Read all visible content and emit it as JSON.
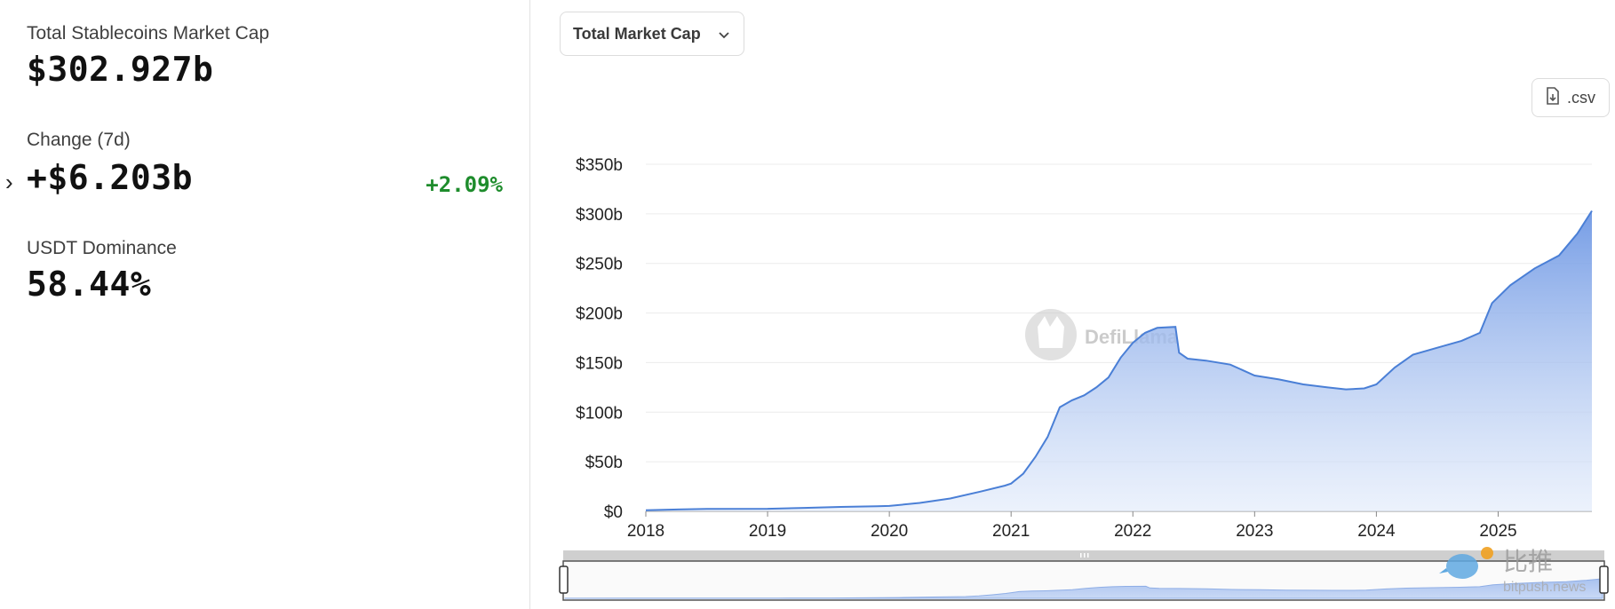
{
  "stats": {
    "market_cap_label": "Total Stablecoins Market Cap",
    "market_cap_value": "$302.927b",
    "change_label": "Change (7d)",
    "change_value": "+$6.203b",
    "change_pct": "+2.09%",
    "dominance_label": "USDT Dominance",
    "dominance_value": "58.44%"
  },
  "toolbar": {
    "metric_select": "Total Market Cap",
    "csv_label": ".csv"
  },
  "watermarks": {
    "defillama": "DefiLlama",
    "bitpush_cn": "比推",
    "bitpush_en": "bitpush.news"
  },
  "colors": {
    "line": "#4a7fd6",
    "fill_top": "#7aa2e8",
    "positive": "#1e8c2c"
  },
  "chart_data": {
    "type": "area",
    "title": "",
    "xlabel": "",
    "ylabel": "",
    "x_ticks": [
      "2018",
      "2019",
      "2020",
      "2021",
      "2022",
      "2023",
      "2024",
      "2025"
    ],
    "y_ticks": [
      "$0",
      "$50b",
      "$100b",
      "$150b",
      "$200b",
      "$250b",
      "$300b",
      "$350b"
    ],
    "xlim": [
      2018.0,
      2025.77
    ],
    "ylim": [
      0,
      350
    ],
    "grid": true,
    "series": [
      {
        "points": [
          [
            2018.0,
            1.2
          ],
          [
            2018.5,
            2.5
          ],
          [
            2019.0,
            2.6
          ],
          [
            2019.3,
            3.5
          ],
          [
            2019.6,
            4.5
          ],
          [
            2019.9,
            5.2
          ],
          [
            2020.0,
            5.5
          ],
          [
            2020.25,
            8.5
          ],
          [
            2020.5,
            13
          ],
          [
            2020.75,
            20
          ],
          [
            2020.95,
            26
          ],
          [
            2021.0,
            28
          ],
          [
            2021.1,
            38
          ],
          [
            2021.2,
            55
          ],
          [
            2021.3,
            75
          ],
          [
            2021.4,
            105
          ],
          [
            2021.5,
            112
          ],
          [
            2021.6,
            117
          ],
          [
            2021.7,
            125
          ],
          [
            2021.8,
            135
          ],
          [
            2021.9,
            155
          ],
          [
            2022.0,
            170
          ],
          [
            2022.1,
            180
          ],
          [
            2022.2,
            185
          ],
          [
            2022.35,
            186
          ],
          [
            2022.38,
            160
          ],
          [
            2022.45,
            154
          ],
          [
            2022.6,
            152
          ],
          [
            2022.8,
            148
          ],
          [
            2023.0,
            137
          ],
          [
            2023.2,
            133
          ],
          [
            2023.4,
            128
          ],
          [
            2023.6,
            125
          ],
          [
            2023.75,
            123
          ],
          [
            2023.9,
            124
          ],
          [
            2024.0,
            128
          ],
          [
            2024.15,
            145
          ],
          [
            2024.3,
            158
          ],
          [
            2024.5,
            165
          ],
          [
            2024.7,
            172
          ],
          [
            2024.85,
            180
          ],
          [
            2024.95,
            210
          ],
          [
            2025.1,
            228
          ],
          [
            2025.3,
            245
          ],
          [
            2025.5,
            258
          ],
          [
            2025.65,
            280
          ],
          [
            2025.77,
            303
          ]
        ]
      }
    ]
  }
}
